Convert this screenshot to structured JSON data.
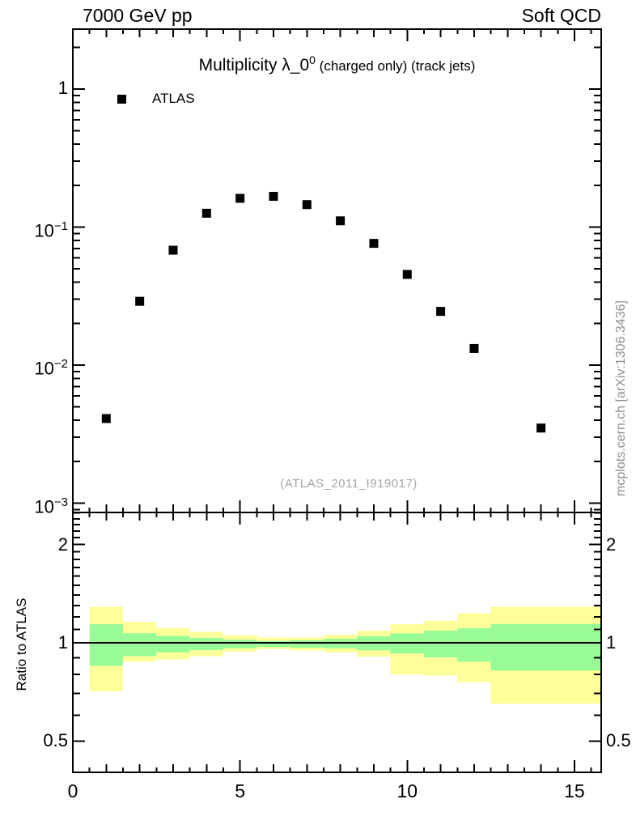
{
  "header": {
    "left": "7000 GeV pp",
    "right": "Soft QCD"
  },
  "title": {
    "main": "Multiplicity λ_0",
    "sup": "0",
    "note": " (charged only) (track jets)"
  },
  "legend": {
    "items": [
      {
        "label": "ATLAS",
        "marker": "filled-black-square"
      }
    ]
  },
  "watermark": "(ATLAS_2011_I919017)",
  "side_note": "mcplots.cern.ch [arXiv:1306.3436]",
  "ratio": {
    "ylabel": "Ratio to ATLAS",
    "reference_line": 1
  },
  "colors": {
    "band_outer": "#ffff99",
    "band_inner": "#99fb98",
    "marker": "#000000",
    "watermark": "#a6a6a6",
    "side_note": "#8f8f8f"
  },
  "axes": {
    "x": {
      "min": 0,
      "max": 15.8,
      "labeled_ticks": [
        {
          "v": 0,
          "label": "0"
        },
        {
          "v": 5,
          "label": "5"
        },
        {
          "v": 10,
          "label": "10"
        },
        {
          "v": 15,
          "label": "15"
        }
      ]
    },
    "main_y": {
      "scale": "log",
      "min": 0.00086,
      "max": 2.7,
      "labeled_ticks": [
        {
          "v": 1,
          "base": "1",
          "exp": ""
        },
        {
          "v": 0.1,
          "base": "10",
          "exp": "−1"
        },
        {
          "v": 0.01,
          "base": "10",
          "exp": "−2"
        },
        {
          "v": 0.001,
          "base": "10",
          "exp": "−3"
        }
      ]
    },
    "ratio_y": {
      "scale": "log",
      "min": 0.401,
      "max": 2.511,
      "labeled_ticks": [
        {
          "v": 2,
          "label": "2"
        },
        {
          "v": 1,
          "label": "1"
        },
        {
          "v": 0.5,
          "label": "0.5"
        }
      ]
    }
  },
  "chart_data": [
    {
      "type": "scatter",
      "panel": "main",
      "title": "Multiplicity λ_0^0 (charged only) (track jets)",
      "yscale": "log",
      "xlim": [
        0,
        15.8
      ],
      "ylim": [
        0.00086,
        2.7
      ],
      "series": [
        {
          "name": "ATLAS",
          "marker": "filled-square",
          "color": "#000000",
          "x": [
            1,
            2,
            3,
            4,
            5,
            6,
            7,
            8,
            9,
            10,
            11,
            12,
            14
          ],
          "y": [
            0.0041,
            0.029,
            0.068,
            0.126,
            0.1615,
            0.167,
            0.1455,
            0.111,
            0.0762,
            0.0454,
            0.0245,
            0.0132,
            0.0035
          ]
        }
      ]
    },
    {
      "type": "band-ratio",
      "panel": "ratio",
      "ylabel": "Ratio to ATLAS",
      "yscale": "log",
      "xlim": [
        0,
        15.8
      ],
      "ylim": [
        0.401,
        2.511
      ],
      "reference_line": 1,
      "bands": [
        {
          "x_lo": 0.5,
          "x_hi": 1.5,
          "outer_lo": 0.71,
          "outer_hi": 1.29,
          "inner_lo": 0.85,
          "inner_hi": 1.14
        },
        {
          "x_lo": 1.5,
          "x_hi": 2.5,
          "outer_lo": 0.875,
          "outer_hi": 1.16,
          "inner_lo": 0.91,
          "inner_hi": 1.07
        },
        {
          "x_lo": 2.5,
          "x_hi": 3.5,
          "outer_lo": 0.89,
          "outer_hi": 1.11,
          "inner_lo": 0.935,
          "inner_hi": 1.05
        },
        {
          "x_lo": 3.5,
          "x_hi": 4.5,
          "outer_lo": 0.91,
          "outer_hi": 1.08,
          "inner_lo": 0.95,
          "inner_hi": 1.035
        },
        {
          "x_lo": 4.5,
          "x_hi": 5.5,
          "outer_lo": 0.94,
          "outer_hi": 1.055,
          "inner_lo": 0.962,
          "inner_hi": 1.023
        },
        {
          "x_lo": 5.5,
          "x_hi": 6.5,
          "outer_lo": 0.957,
          "outer_hi": 1.038,
          "inner_lo": 0.972,
          "inner_hi": 1.013
        },
        {
          "x_lo": 6.5,
          "x_hi": 7.5,
          "outer_lo": 0.948,
          "outer_hi": 1.038,
          "inner_lo": 0.966,
          "inner_hi": 1.019
        },
        {
          "x_lo": 7.5,
          "x_hi": 8.5,
          "outer_lo": 0.934,
          "outer_hi": 1.058,
          "inner_lo": 0.961,
          "inner_hi": 1.029
        },
        {
          "x_lo": 8.5,
          "x_hi": 9.5,
          "outer_lo": 0.907,
          "outer_hi": 1.088,
          "inner_lo": 0.948,
          "inner_hi": 1.047
        },
        {
          "x_lo": 9.5,
          "x_hi": 10.5,
          "outer_lo": 0.8,
          "outer_hi": 1.14,
          "inner_lo": 0.927,
          "inner_hi": 1.069
        },
        {
          "x_lo": 10.5,
          "x_hi": 11.5,
          "outer_lo": 0.794,
          "outer_hi": 1.168,
          "inner_lo": 0.901,
          "inner_hi": 1.089
        },
        {
          "x_lo": 11.5,
          "x_hi": 12.5,
          "outer_lo": 0.757,
          "outer_hi": 1.232,
          "inner_lo": 0.875,
          "inner_hi": 1.108
        },
        {
          "x_lo": 12.5,
          "x_hi": 15.8,
          "outer_lo": 0.65,
          "outer_hi": 1.29,
          "inner_lo": 0.822,
          "inner_hi": 1.142
        }
      ],
      "colors": {
        "outer": "#ffff99",
        "inner": "#99fb98"
      }
    }
  ]
}
